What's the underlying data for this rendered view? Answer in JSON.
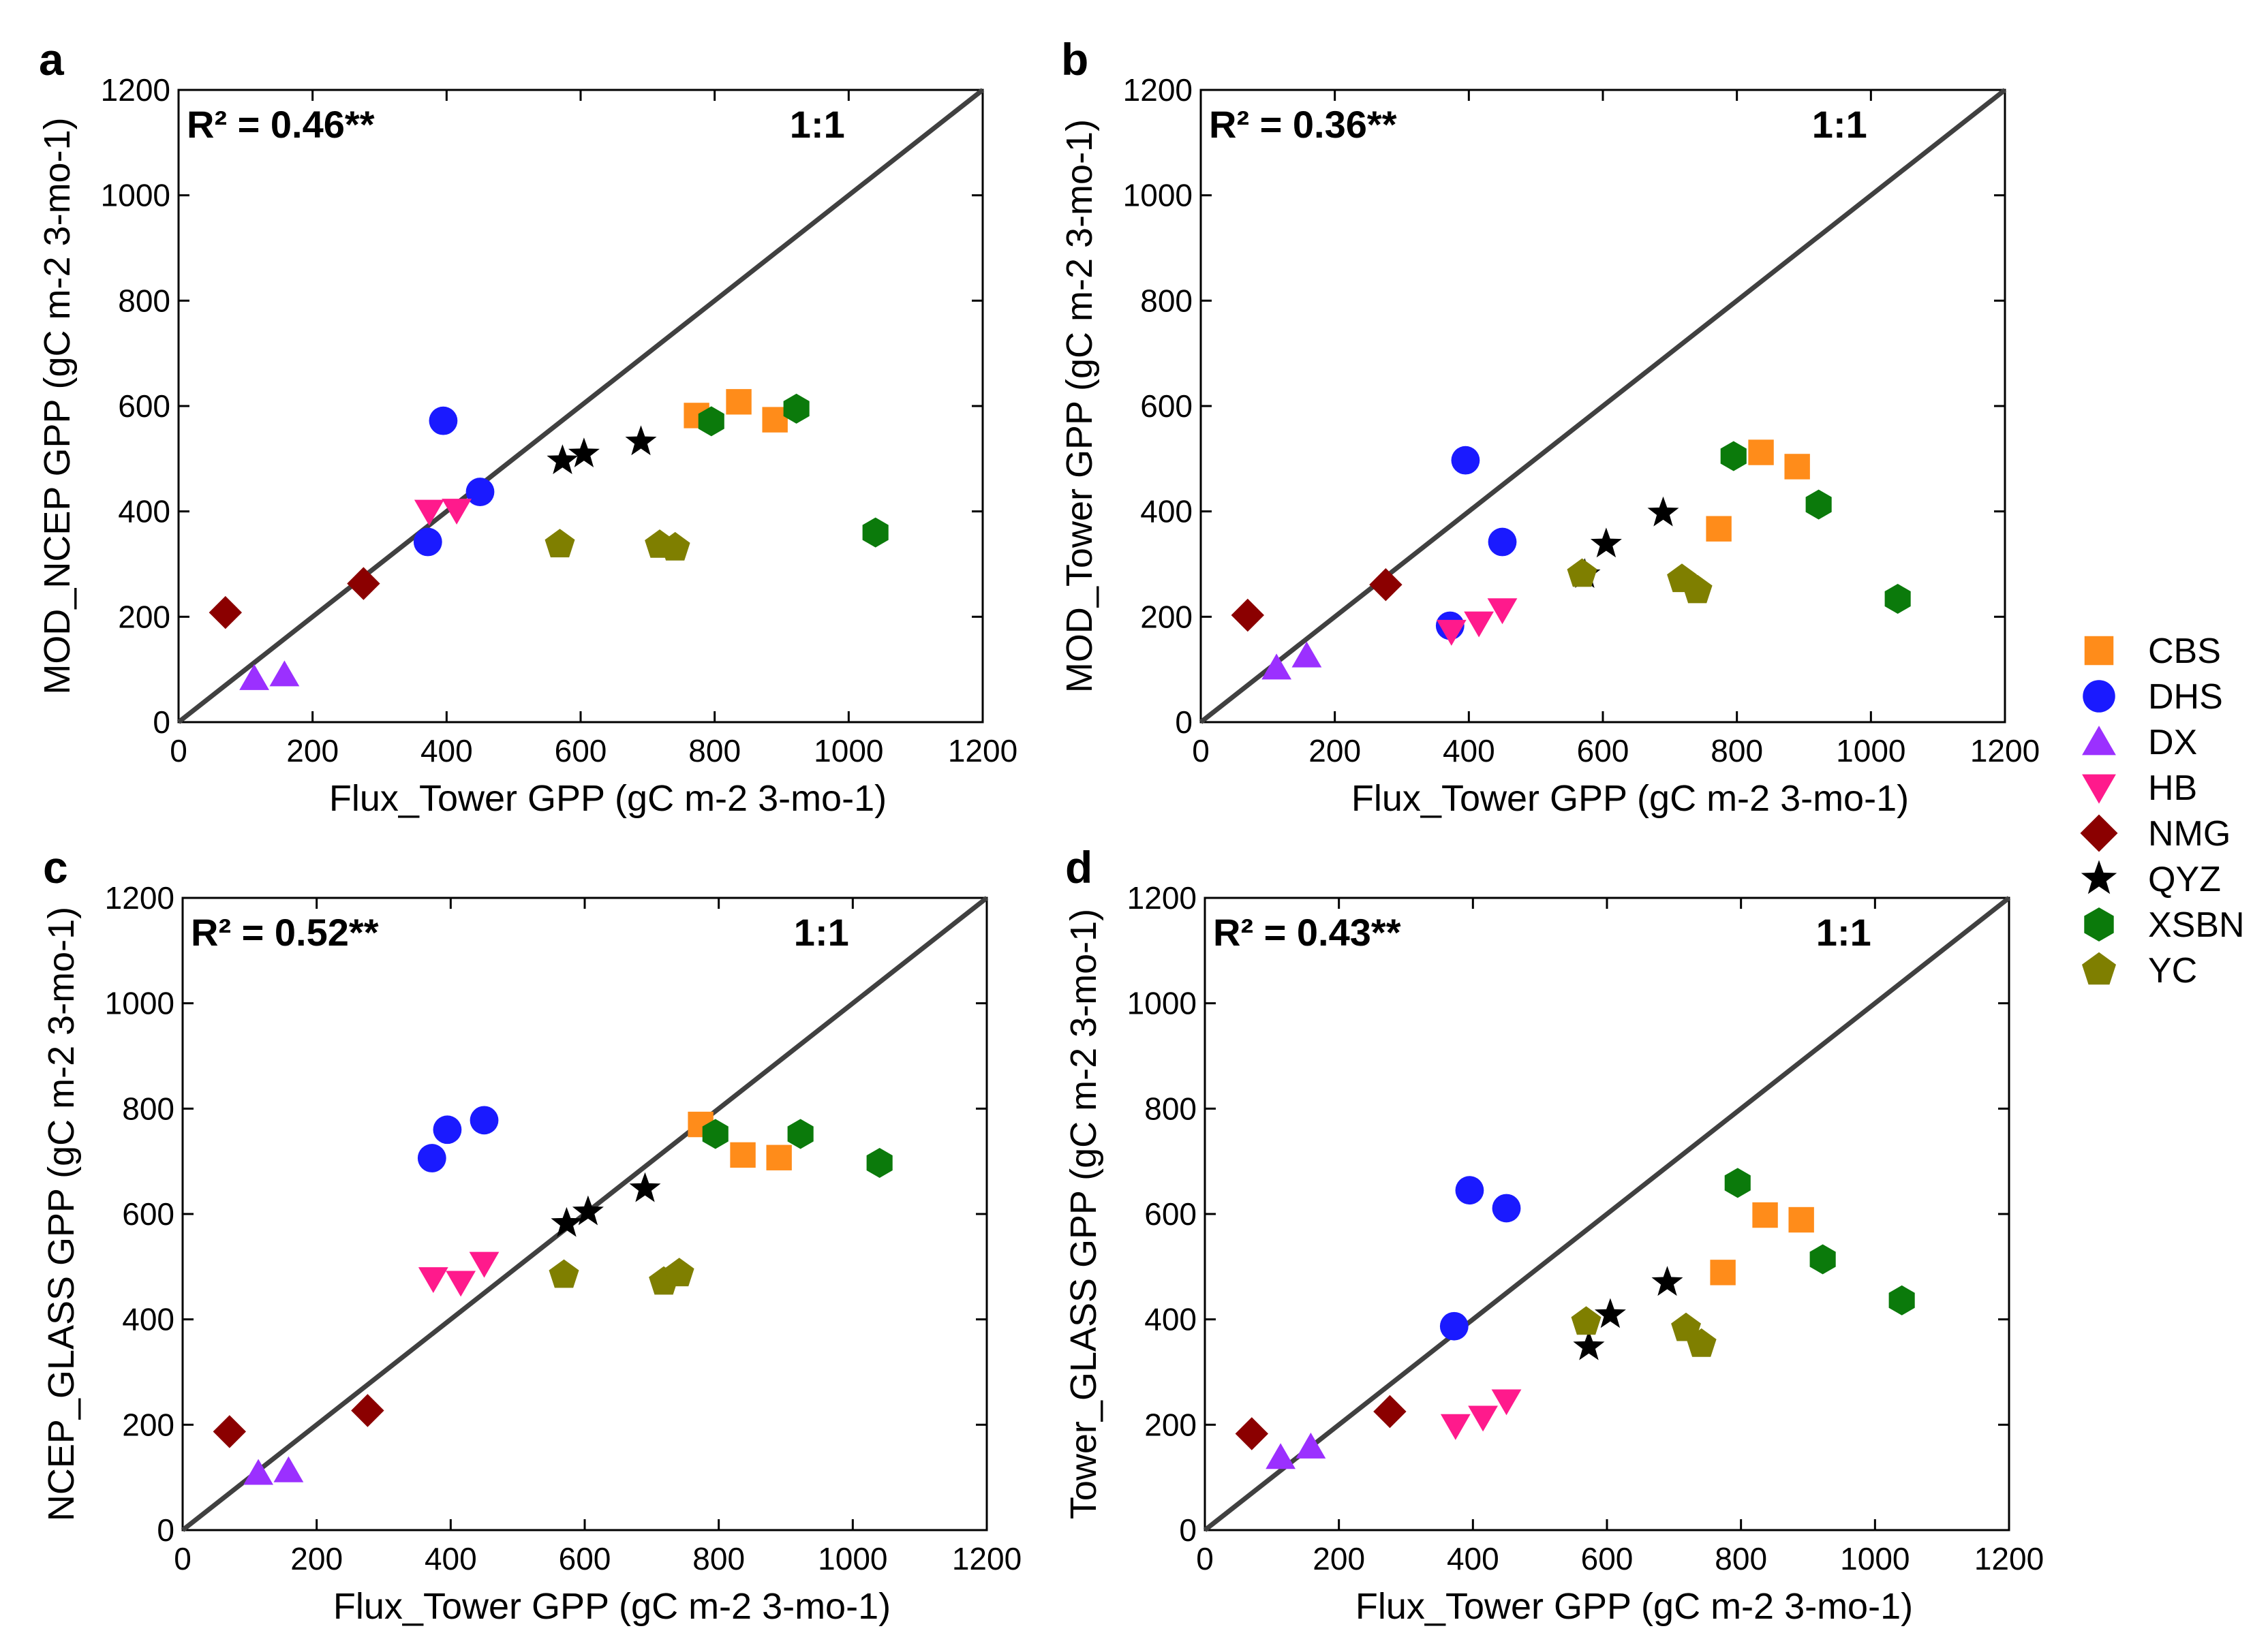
{
  "chart_data": [
    {
      "type": "scatter",
      "panel": "a",
      "xlabel": "Flux_Tower GPP (gC m-2 3-mo-1)",
      "ylabel": "MOD_NCEP GPP (gC m-2 3-mo-1)",
      "xlim": [
        0,
        1200
      ],
      "ylim": [
        0,
        1200
      ],
      "xticks": [
        "0",
        "200",
        "400",
        "600",
        "800",
        "1000",
        "1200"
      ],
      "yticks": [
        "0",
        "200",
        "400",
        "600",
        "800",
        "1000",
        "1200"
      ],
      "r2": "R² = 0.46**",
      "ratio": "1:1",
      "series": [
        {
          "name": "CBS",
          "points": [
            [
              773,
              582
            ],
            [
              836,
              608
            ],
            [
              890,
              574
            ]
          ]
        },
        {
          "name": "DHS",
          "points": [
            [
              395,
              572
            ],
            [
              372,
              342
            ],
            [
              450,
              437
            ]
          ]
        },
        {
          "name": "DX",
          "points": [
            [
              113,
              83
            ],
            [
              158,
              90
            ]
          ]
        },
        {
          "name": "HB",
          "points": [
            [
              374,
              400
            ],
            [
              415,
              402
            ]
          ]
        },
        {
          "name": "NMG",
          "points": [
            [
              70,
              208
            ],
            [
              276,
              263
            ]
          ]
        },
        {
          "name": "QYZ",
          "points": [
            [
              573,
              496
            ],
            [
              605,
              509
            ],
            [
              690,
              532
            ]
          ]
        },
        {
          "name": "XSBN",
          "points": [
            [
              795,
              571
            ],
            [
              922,
              595
            ],
            [
              1040,
              360
            ]
          ]
        },
        {
          "name": "YC",
          "points": [
            [
              569,
              337
            ],
            [
              718,
              336
            ],
            [
              741,
              331
            ]
          ]
        }
      ]
    },
    {
      "type": "scatter",
      "panel": "b",
      "xlabel": "Flux_Tower GPP (gC m-2 3-mo-1)",
      "ylabel": "MOD_Tower GPP (gC m-2 3-mo-1)",
      "xlim": [
        0,
        1200
      ],
      "ylim": [
        0,
        1200
      ],
      "xticks": [
        "0",
        "200",
        "400",
        "600",
        "800",
        "1000",
        "1200"
      ],
      "yticks": [
        "0",
        "200",
        "400",
        "600",
        "800",
        "1000",
        "1200"
      ],
      "r2": "R² = 0.36**",
      "ratio": "1:1",
      "series": [
        {
          "name": "CBS",
          "points": [
            [
              773,
              367
            ],
            [
              836,
              512
            ],
            [
              890,
              485
            ]
          ]
        },
        {
          "name": "DHS",
          "points": [
            [
              395,
              497
            ],
            [
              372,
              183
            ],
            [
              450,
              342
            ]
          ]
        },
        {
          "name": "DX",
          "points": [
            [
              113,
              103
            ],
            [
              158,
              126
            ]
          ]
        },
        {
          "name": "HB",
          "points": [
            [
              374,
              172
            ],
            [
              415,
              188
            ],
            [
              450,
              213
            ]
          ]
        },
        {
          "name": "NMG",
          "points": [
            [
              70,
              203
            ],
            [
              276,
              261
            ]
          ]
        },
        {
          "name": "QYZ",
          "points": [
            [
              573,
              280
            ],
            [
              605,
              338
            ],
            [
              690,
              397
            ]
          ]
        },
        {
          "name": "XSBN",
          "points": [
            [
              795,
              505
            ],
            [
              922,
              413
            ],
            [
              1040,
              234
            ]
          ]
        },
        {
          "name": "YC",
          "points": [
            [
              569,
              281
            ],
            [
              718,
              271
            ],
            [
              741,
              250
            ]
          ]
        }
      ]
    },
    {
      "type": "scatter",
      "panel": "c",
      "xlabel": "Flux_Tower GPP (gC m-2 3-mo-1)",
      "ylabel": "NCEP_GLASS GPP (gC m-2 3-mo-1)",
      "xlim": [
        0,
        1200
      ],
      "ylim": [
        0,
        1200
      ],
      "xticks": [
        "0",
        "200",
        "400",
        "600",
        "800",
        "1000",
        "1200"
      ],
      "yticks": [
        "0",
        "200",
        "400",
        "600",
        "800",
        "1000",
        "1200"
      ],
      "r2": "R² = 0.52**",
      "ratio": "1:1",
      "series": [
        {
          "name": "CBS",
          "points": [
            [
              773,
              770
            ],
            [
              836,
              712
            ],
            [
              890,
              707
            ]
          ]
        },
        {
          "name": "DHS",
          "points": [
            [
              395,
              760
            ],
            [
              372,
              706
            ],
            [
              450,
              778
            ]
          ]
        },
        {
          "name": "DX",
          "points": [
            [
              113,
              108
            ],
            [
              158,
              113
            ]
          ]
        },
        {
          "name": "HB",
          "points": [
            [
              374,
              477
            ],
            [
              415,
              470
            ],
            [
              450,
              506
            ]
          ]
        },
        {
          "name": "NMG",
          "points": [
            [
              70,
              187
            ],
            [
              276,
              227
            ]
          ]
        },
        {
          "name": "QYZ",
          "points": [
            [
              573,
              582
            ],
            [
              605,
              604
            ],
            [
              690,
              648
            ]
          ]
        },
        {
          "name": "XSBN",
          "points": [
            [
              795,
              752
            ],
            [
              922,
              752
            ],
            [
              1040,
              697
            ]
          ]
        },
        {
          "name": "YC",
          "points": [
            [
              569,
              484
            ],
            [
              718,
              471
            ],
            [
              741,
              487
            ]
          ]
        }
      ]
    },
    {
      "type": "scatter",
      "panel": "d",
      "xlabel": "Flux_Tower GPP (gC m-2 3-mo-1)",
      "ylabel": "Tower_GLASS GPP (gC m-2 3-mo-1)",
      "xlim": [
        0,
        1200
      ],
      "ylim": [
        0,
        1200
      ],
      "xticks": [
        "0",
        "200",
        "400",
        "600",
        "800",
        "1000",
        "1200"
      ],
      "yticks": [
        "0",
        "200",
        "400",
        "600",
        "800",
        "1000",
        "1200"
      ],
      "r2": "R² = 0.43**",
      "ratio": "1:1",
      "series": [
        {
          "name": "CBS",
          "points": [
            [
              773,
              489
            ],
            [
              836,
              598
            ],
            [
              890,
              589
            ]
          ]
        },
        {
          "name": "DHS",
          "points": [
            [
              395,
              645
            ],
            [
              372,
              387
            ],
            [
              450,
              611
            ]
          ]
        },
        {
          "name": "DX",
          "points": [
            [
              113,
              138
            ],
            [
              158,
              158
            ]
          ]
        },
        {
          "name": "HB",
          "points": [
            [
              374,
              198
            ],
            [
              415,
              214
            ],
            [
              450,
              245
            ]
          ]
        },
        {
          "name": "NMG",
          "points": [
            [
              70,
              183
            ],
            [
              276,
              225
            ]
          ]
        },
        {
          "name": "QYZ",
          "points": [
            [
              573,
              348
            ],
            [
              605,
              409
            ],
            [
              690,
              470
            ]
          ]
        },
        {
          "name": "XSBN",
          "points": [
            [
              795,
              659
            ],
            [
              922,
              514
            ],
            [
              1040,
              436
            ]
          ]
        },
        {
          "name": "YC",
          "points": [
            [
              569,
              395
            ],
            [
              718,
              383
            ],
            [
              741,
              353
            ]
          ]
        }
      ]
    }
  ],
  "legend": {
    "position": "right",
    "items": [
      {
        "name": "CBS",
        "marker": "square",
        "color": "#ff8c1a"
      },
      {
        "name": "DHS",
        "marker": "circle",
        "color": "#1a1aff"
      },
      {
        "name": "DX",
        "marker": "triangle-up",
        "color": "#9b30ff"
      },
      {
        "name": "HB",
        "marker": "triangle-down",
        "color": "#ff1a8c"
      },
      {
        "name": "NMG",
        "marker": "diamond",
        "color": "#8b0000"
      },
      {
        "name": "QYZ",
        "marker": "star",
        "color": "#000000"
      },
      {
        "name": "XSBN",
        "marker": "hexagon",
        "color": "#0b7a0b"
      },
      {
        "name": "YC",
        "marker": "pentagon",
        "color": "#7f7f00"
      }
    ]
  }
}
